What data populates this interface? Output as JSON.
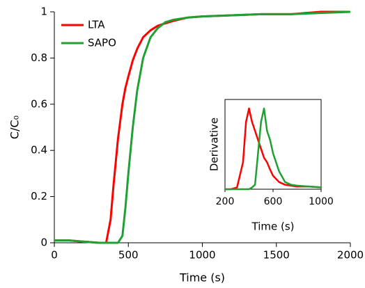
{
  "chart_data": [
    {
      "type": "line",
      "xlabel": "Time (s)",
      "ylabel": "C/C₀",
      "x": [
        0,
        100,
        200,
        300,
        350,
        380,
        400,
        430,
        460,
        480,
        500,
        530,
        560,
        600,
        650,
        700,
        750,
        800,
        900,
        1000,
        1200,
        1400,
        1600,
        1800,
        2000
      ],
      "series": [
        {
          "name": "LTA",
          "color": "#ff0000",
          "values": [
            0.01,
            0.01,
            0.005,
            0,
            0,
            0.1,
            0.25,
            0.45,
            0.6,
            0.67,
            0.72,
            0.79,
            0.84,
            0.89,
            0.92,
            0.94,
            0.95,
            0.96,
            0.975,
            0.98,
            0.985,
            0.99,
            0.99,
            1.0,
            1.0
          ]
        },
        {
          "name": "SAPO",
          "color": "#1fa032",
          "values": [
            0.01,
            0.01,
            0.005,
            0,
            0,
            0,
            0,
            0,
            0.03,
            0.15,
            0.3,
            0.5,
            0.66,
            0.8,
            0.89,
            0.93,
            0.955,
            0.965,
            0.975,
            0.98,
            0.985,
            0.99,
            0.99,
            0.995,
            1.0
          ]
        }
      ],
      "xlim": [
        0,
        2000
      ],
      "xticks": [
        0,
        500,
        1000,
        1500,
        2000
      ],
      "ylim": [
        0,
        1
      ],
      "yticks": [
        0,
        0.2,
        0.4,
        0.6,
        0.8,
        1
      ],
      "legend": "upper left"
    },
    {
      "type": "line",
      "xlabel": "Time (s)",
      "ylabel": "Derivative",
      "x": [
        200,
        250,
        300,
        350,
        375,
        400,
        425,
        450,
        475,
        500,
        525,
        550,
        575,
        600,
        650,
        700,
        750,
        800,
        900,
        1000
      ],
      "series": [
        {
          "color": "#ff0000",
          "values": [
            0,
            0,
            0.02,
            0.3,
            0.75,
            0.9,
            0.75,
            0.65,
            0.55,
            0.45,
            0.35,
            0.3,
            0.22,
            0.15,
            0.08,
            0.05,
            0.04,
            0.03,
            0.03,
            0.02
          ]
        },
        {
          "color": "#1fa032",
          "values": [
            0,
            0,
            0,
            0,
            0,
            0,
            0.02,
            0.05,
            0.4,
            0.75,
            0.9,
            0.65,
            0.55,
            0.4,
            0.2,
            0.08,
            0.05,
            0.04,
            0.03,
            0.02
          ]
        }
      ],
      "xlim": [
        200,
        1000
      ],
      "xticks": [
        200,
        600,
        1000
      ],
      "ylim": [
        0,
        1
      ]
    }
  ]
}
